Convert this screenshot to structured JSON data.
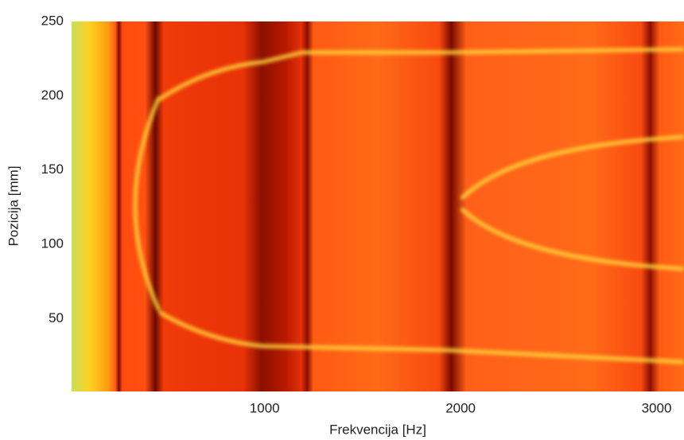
{
  "chart_data": {
    "type": "heatmap",
    "x_label": "Frekvencija [Hz]",
    "y_label": "Pozicija [mm]",
    "xlim": [
      15,
      3140
    ],
    "xticks": [
      1000,
      2000,
      3000
    ],
    "ylim": [
      1,
      250
    ],
    "yticks": [
      50,
      100,
      150,
      200,
      250
    ]
  }
}
